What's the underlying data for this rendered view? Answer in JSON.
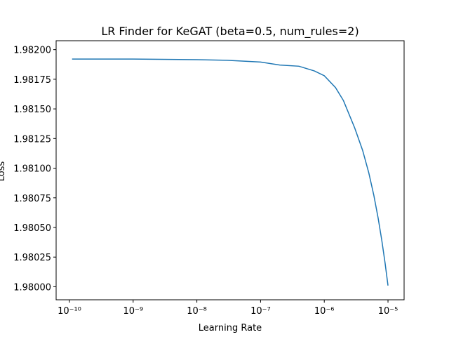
{
  "chart_data": {
    "type": "line",
    "title": "LR Finder for KeGAT (beta=0.5, num_rules=2)",
    "xlabel": "Learning Rate",
    "ylabel": "Loss",
    "xscale": "log",
    "x": [
      1.1e-10,
      1e-09,
      1e-08,
      3e-08,
      1e-07,
      2e-07,
      4e-07,
      7e-07,
      1e-06,
      1.5e-06,
      2e-06,
      3e-06,
      4e-06,
      5e-06,
      6e-06,
      7e-06,
      8e-06,
      9e-06,
      1e-05
    ],
    "series": [
      {
        "color": "#1f77b4",
        "values": [
          1.98192,
          1.98192,
          1.981915,
          1.98191,
          1.981895,
          1.98187,
          1.98186,
          1.98182,
          1.98178,
          1.98168,
          1.98157,
          1.98134,
          1.98115,
          1.98096,
          1.98077,
          1.98058,
          1.98039,
          1.9802,
          1.98001
        ]
      }
    ],
    "xlim": [
      6.18e-11,
      1.79e-05
    ],
    "xticks": [
      {
        "value": 1e-10,
        "label": "10⁻¹⁰"
      },
      {
        "value": 1e-09,
        "label": "10⁻⁹"
      },
      {
        "value": 1e-08,
        "label": "10⁻⁸"
      },
      {
        "value": 1e-07,
        "label": "10⁻⁷"
      },
      {
        "value": 1e-06,
        "label": "10⁻⁶"
      },
      {
        "value": 1e-05,
        "label": "10⁻⁵"
      }
    ],
    "ylim": [
      1.97989,
      1.982075
    ],
    "yticks": [
      {
        "value": 1.98,
        "label": "1.98000"
      },
      {
        "value": 1.98025,
        "label": "1.98025"
      },
      {
        "value": 1.9805,
        "label": "1.98050"
      },
      {
        "value": 1.98075,
        "label": "1.98075"
      },
      {
        "value": 1.981,
        "label": "1.98100"
      },
      {
        "value": 1.98125,
        "label": "1.98125"
      },
      {
        "value": 1.9815,
        "label": "1.98150"
      },
      {
        "value": 1.98175,
        "label": "1.98175"
      },
      {
        "value": 1.982,
        "label": "1.98200"
      }
    ]
  }
}
